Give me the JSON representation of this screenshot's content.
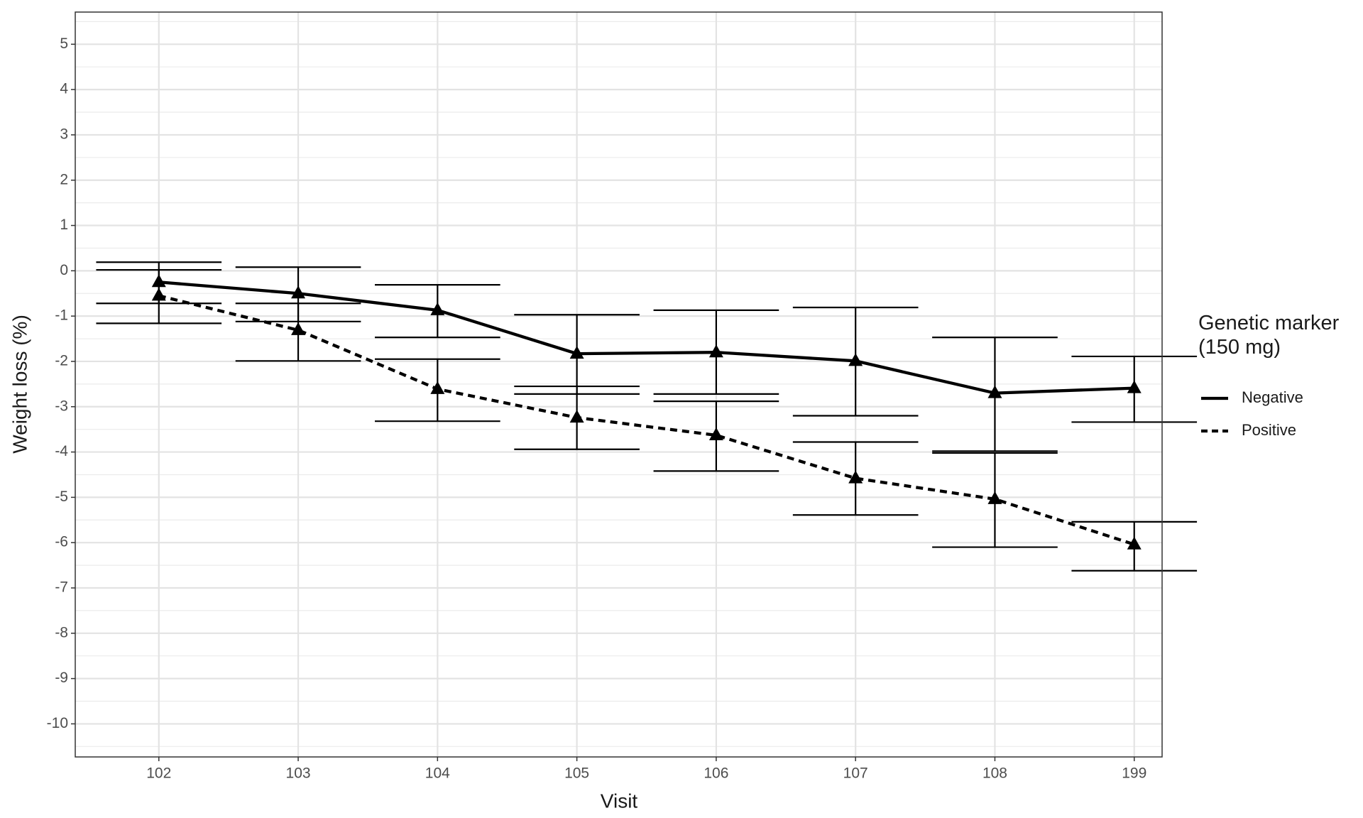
{
  "chart_data": {
    "type": "line",
    "x_label": "Visit",
    "y_label": "Weight loss (%)",
    "legend_title": "Genetic marker\n(150 mg)",
    "legend_position": "right",
    "categories": [
      "102",
      "103",
      "104",
      "105",
      "106",
      "107",
      "108",
      "199"
    ],
    "series": [
      {
        "name": "Negative",
        "color": "#000000",
        "dash": "solid",
        "values": [
          -0.25,
          -0.5,
          -0.87,
          -1.83,
          -1.8,
          -1.99,
          -2.7,
          -2.59
        ],
        "lower": [
          -0.72,
          -1.12,
          -1.47,
          -2.72,
          -2.72,
          -3.2,
          -3.98,
          -3.34
        ],
        "upper": [
          0.19,
          0.08,
          -0.31,
          -0.97,
          -0.87,
          -0.81,
          -1.47,
          -1.89
        ]
      },
      {
        "name": "Positive",
        "color": "#000000",
        "dash": "dashed",
        "values": [
          -0.55,
          -1.31,
          -2.61,
          -3.24,
          -3.63,
          -4.58,
          -5.04,
          -6.04
        ],
        "lower": [
          -1.16,
          -1.99,
          -3.32,
          -3.94,
          -4.42,
          -5.39,
          -6.1,
          -6.62
        ],
        "upper": [
          0.02,
          -0.72,
          -1.95,
          -2.55,
          -2.88,
          -3.78,
          -4.02,
          -5.54
        ]
      }
    ],
    "ylim": [
      -10.73,
      5.71
    ],
    "yticks": [
      -10,
      -9,
      -8,
      -7,
      -6,
      -5,
      -4,
      -3,
      -2,
      -1,
      0,
      1,
      2,
      3,
      4,
      5
    ],
    "grid": true,
    "minor_grid": true
  }
}
